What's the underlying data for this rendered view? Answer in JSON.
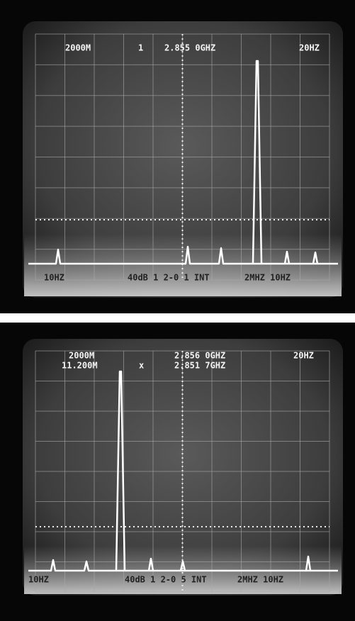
{
  "screens": [
    {
      "labels": [
        "2000M",
        "1",
        "2.855 0GHZ",
        "20HZ"
      ],
      "footer": [
        "10HZ",
        "40dB 1 2-0 1 INT",
        "2MHZ 10HZ"
      ]
    },
    {
      "labels": [
        "2000M",
        "11.200M",
        "x",
        "2.856 0GHZ",
        "2.851 7GHZ",
        "20HZ"
      ],
      "footer": [
        "10HZ",
        "40dB 1 2-0 5 INT",
        "2MHZ 10HZ"
      ]
    }
  ]
}
